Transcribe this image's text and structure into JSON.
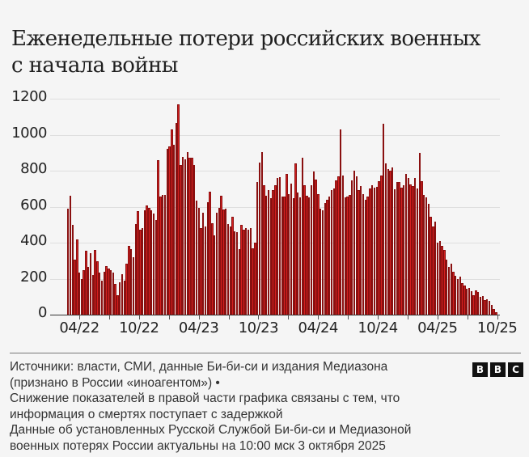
{
  "header": {
    "title": "Еженедельные потери российских военных с начала войны"
  },
  "chart_data": {
    "type": "bar",
    "title": "Еженедельные потери российских военных с начала войны",
    "xlabel": "",
    "ylabel": "",
    "ylim": [
      0,
      1200
    ],
    "yticks": [
      0,
      200,
      400,
      600,
      800,
      1000,
      1200
    ],
    "ytick_labels": [
      "0",
      "200",
      "400",
      "600",
      "800",
      "1000",
      "1200"
    ],
    "xtick_labels": [
      "04/22",
      "10/22",
      "04/23",
      "10/23",
      "04/24",
      "10/24",
      "04/25",
      "10/25"
    ],
    "grid": true,
    "legend": null,
    "bar_color": "#d41f1f",
    "bar_edge_color": "#8a1010",
    "series": [
      {
        "name": "Еженедельные потери",
        "values": [
          590,
          660,
          500,
          305,
          420,
          235,
          200,
          245,
          355,
          265,
          340,
          220,
          360,
          295,
          235,
          190,
          240,
          270,
          255,
          245,
          235,
          170,
          110,
          180,
          225,
          190,
          285,
          380,
          365,
          320,
          505,
          575,
          470,
          480,
          580,
          605,
          595,
          580,
          560,
          525,
          860,
          655,
          665,
          665,
          920,
          935,
          1030,
          945,
          1065,
          1170,
          830,
          875,
          865,
          905,
          870,
          870,
          830,
          635,
          595,
          480,
          565,
          490,
          625,
          685,
          510,
          440,
          565,
          595,
          660,
          585,
          590,
          505,
          490,
          545,
          465,
          460,
          365,
          500,
          470,
          480,
          470,
          480,
          370,
          400,
          735,
          845,
          905,
          720,
          660,
          690,
          645,
          690,
          720,
          760,
          765,
          655,
          655,
          780,
          670,
          730,
          645,
          840,
          680,
          650,
          870,
          720,
          660,
          650,
          720,
          795,
          750,
          670,
          590,
          580,
          620,
          640,
          655,
          690,
          700,
          745,
          770,
          1030,
          775,
          650,
          655,
          665,
          745,
          800,
          770,
          690,
          715,
          670,
          640,
          655,
          700,
          720,
          705,
          710,
          740,
          775,
          1060,
          840,
          810,
          800,
          820,
          695,
          735,
          735,
          705,
          720,
          780,
          760,
          725,
          715,
          760,
          700,
          900,
          740,
          665,
          650,
          615,
          545,
          490,
          515,
          400,
          410,
          380,
          360,
          305,
          265,
          285,
          240,
          215,
          200,
          210,
          175,
          160,
          145,
          150,
          130,
          110,
          135,
          125,
          100,
          105,
          80,
          85,
          75,
          55,
          30,
          15
        ]
      }
    ]
  },
  "footer": {
    "line1": "Источники: власти, СМИ, данные Би-би-си и издания Медиазона",
    "line2": "(признано в России «иноагентом») •",
    "line3": "Снижение показателей в правой части графика связаны с тем, что",
    "line4": "информация о смертях поступает с задержкой",
    "line5": "Данные об установленных Русской Службой Би-би-си и Медиазоной",
    "line6": "военных потерях России актуальны на 10:00 мск 3 октября 2025",
    "logo": [
      "B",
      "B",
      "C"
    ]
  }
}
